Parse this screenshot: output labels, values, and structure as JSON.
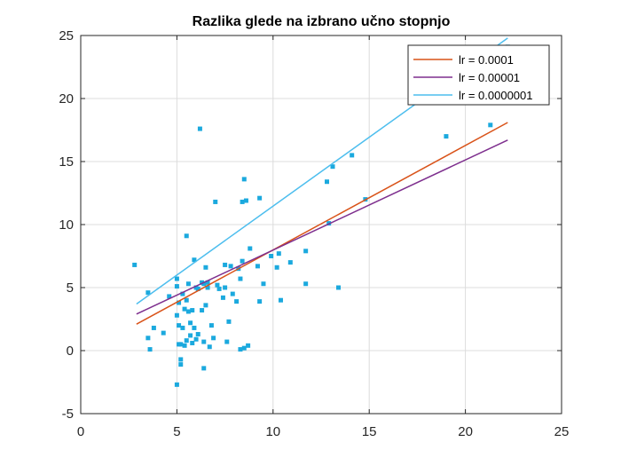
{
  "chart_data": {
    "type": "scatter",
    "title": "Razlika glede na izbrano učno stopnjo",
    "xlabel": "",
    "ylabel": "",
    "xlim": [
      0,
      25
    ],
    "ylim": [
      -5,
      25
    ],
    "xticks": [
      0,
      5,
      10,
      15,
      20,
      25
    ],
    "yticks": [
      -5,
      0,
      5,
      10,
      15,
      20,
      25
    ],
    "xtick_labels": [
      "0",
      "5",
      "10",
      "15",
      "20",
      "25"
    ],
    "ytick_labels": [
      "-5",
      "0",
      "5",
      "10",
      "15",
      "20",
      "25"
    ],
    "grid": true,
    "legend_position": "top-right",
    "scatter": {
      "color": "#1ba9de",
      "points": [
        [
          2.8,
          6.8
        ],
        [
          3.5,
          4.6
        ],
        [
          3.5,
          1.0
        ],
        [
          3.6,
          0.1
        ],
        [
          3.8,
          1.8
        ],
        [
          4.3,
          1.4
        ],
        [
          4.6,
          4.3
        ],
        [
          5.0,
          5.7
        ],
        [
          5.0,
          5.1
        ],
        [
          5.1,
          3.8
        ],
        [
          5.0,
          2.8
        ],
        [
          5.1,
          2.0
        ],
        [
          5.1,
          0.5
        ],
        [
          5.0,
          -2.7
        ],
        [
          5.2,
          -0.7
        ],
        [
          5.2,
          -1.1
        ],
        [
          5.3,
          4.5
        ],
        [
          5.3,
          1.8
        ],
        [
          5.4,
          0.4
        ],
        [
          5.4,
          3.3
        ],
        [
          5.5,
          9.1
        ],
        [
          5.5,
          4.0
        ],
        [
          5.6,
          5.3
        ],
        [
          5.6,
          3.1
        ],
        [
          5.7,
          2.2
        ],
        [
          5.7,
          1.2
        ],
        [
          5.8,
          3.2
        ],
        [
          5.8,
          0.6
        ],
        [
          5.9,
          7.2
        ],
        [
          5.9,
          1.8
        ],
        [
          6.0,
          0.9
        ],
        [
          6.1,
          1.3
        ],
        [
          6.1,
          4.9
        ],
        [
          6.2,
          17.6
        ],
        [
          6.3,
          5.4
        ],
        [
          6.3,
          3.2
        ],
        [
          6.4,
          5.3
        ],
        [
          6.4,
          0.7
        ],
        [
          6.4,
          -1.4
        ],
        [
          6.5,
          6.6
        ],
        [
          6.5,
          3.6
        ],
        [
          6.6,
          5.4
        ],
        [
          6.7,
          0.3
        ],
        [
          6.8,
          2.0
        ],
        [
          6.9,
          1.0
        ],
        [
          7.0,
          11.8
        ],
        [
          7.1,
          5.2
        ],
        [
          7.2,
          4.9
        ],
        [
          7.4,
          4.2
        ],
        [
          7.5,
          6.8
        ],
        [
          7.5,
          5.0
        ],
        [
          7.6,
          0.7
        ],
        [
          7.7,
          2.3
        ],
        [
          7.8,
          6.7
        ],
        [
          7.9,
          4.5
        ],
        [
          8.1,
          3.9
        ],
        [
          8.2,
          6.5
        ],
        [
          8.3,
          5.7
        ],
        [
          8.4,
          7.1
        ],
        [
          8.4,
          11.8
        ],
        [
          8.5,
          13.6
        ],
        [
          8.6,
          11.9
        ],
        [
          8.7,
          0.4
        ],
        [
          8.8,
          8.1
        ],
        [
          9.2,
          6.7
        ],
        [
          9.3,
          12.1
        ],
        [
          9.3,
          3.9
        ],
        [
          9.5,
          5.3
        ],
        [
          9.9,
          7.5
        ],
        [
          10.2,
          6.6
        ],
        [
          10.3,
          7.7
        ],
        [
          10.4,
          4.0
        ],
        [
          10.9,
          7.0
        ],
        [
          11.7,
          7.9
        ],
        [
          11.7,
          5.3
        ],
        [
          12.8,
          13.4
        ],
        [
          12.9,
          10.1
        ],
        [
          13.1,
          14.6
        ],
        [
          13.4,
          5.0
        ],
        [
          14.1,
          15.5
        ],
        [
          14.8,
          12.0
        ],
        [
          19.0,
          17.0
        ],
        [
          21.3,
          17.9
        ],
        [
          22.2,
          24.1
        ],
        [
          8.3,
          0.1
        ],
        [
          8.5,
          0.2
        ],
        [
          5.5,
          0.8
        ],
        [
          5.2,
          0.5
        ],
        [
          6.6,
          5.0
        ],
        [
          6.0,
          5.0
        ]
      ]
    },
    "series": [
      {
        "name": "lr = 0.0001",
        "color": "#d95319",
        "x": [
          2.9,
          22.2
        ],
        "y": [
          2.1,
          18.1
        ]
      },
      {
        "name": "lr = 0.00001",
        "color": "#7e2f8e",
        "x": [
          2.9,
          22.2
        ],
        "y": [
          2.9,
          16.7
        ]
      },
      {
        "name": "lr = 0.0000001",
        "color": "#4dbeee",
        "x": [
          2.9,
          22.2
        ],
        "y": [
          3.7,
          24.8
        ]
      }
    ]
  }
}
